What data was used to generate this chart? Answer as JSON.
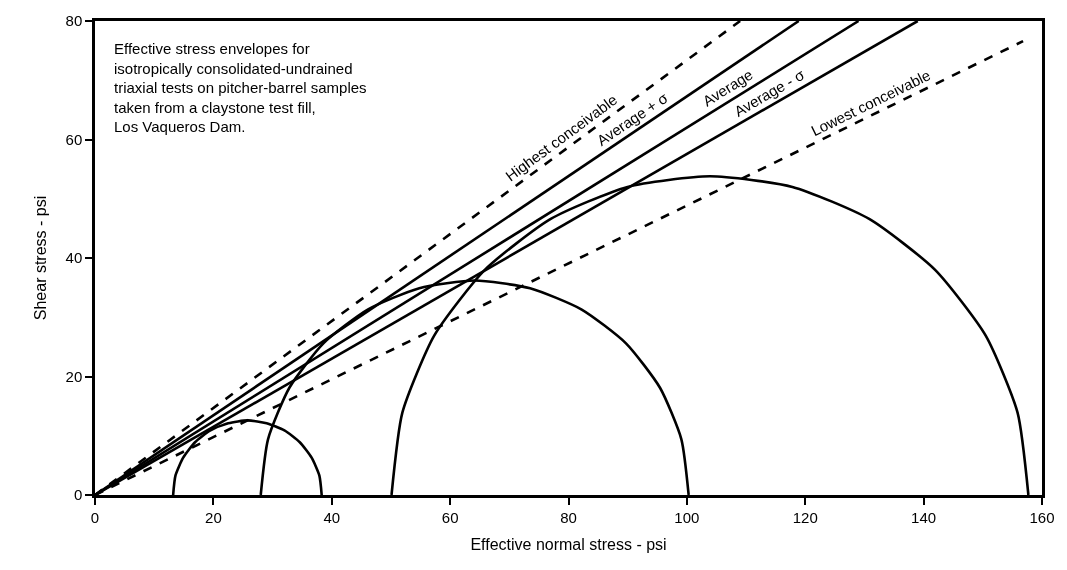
{
  "chart_data": {
    "type": "line",
    "xlabel": "Effective normal stress - psi",
    "ylabel": "Shear stress - psi",
    "xlim": [
      0,
      160
    ],
    "ylim": [
      0,
      80
    ],
    "xticks": [
      0,
      20,
      40,
      60,
      80,
      100,
      120,
      140,
      160
    ],
    "yticks": [
      0,
      20,
      40,
      60,
      80
    ],
    "grid": false,
    "marker": "none",
    "series": [
      {
        "color": "#000000",
        "line_style": "dashed",
        "x": [
          0,
          109
        ],
        "values": [
          0,
          80
        ]
      },
      {
        "color": "#000000",
        "line_style": "solid",
        "x": [
          0,
          118.9
        ],
        "values": [
          0,
          80
        ]
      },
      {
        "color": "#000000",
        "line_style": "solid",
        "x": [
          0,
          129
        ],
        "values": [
          0,
          80
        ]
      },
      {
        "color": "#000000",
        "line_style": "solid",
        "x": [
          0,
          139
        ],
        "values": [
          0,
          80
        ]
      },
      {
        "color": "#000000",
        "line_style": "dashed",
        "x": [
          0,
          156.8
        ],
        "values": [
          0,
          76.6
        ]
      },
      {
        "color": "#000000",
        "line_style": "solid",
        "x": [
          13.2,
          13.6,
          14.9,
          16.9,
          19.5,
          22.5,
          25.8,
          29,
          32,
          34.6,
          36.6,
          37.9,
          38.3
        ],
        "values": [
          0,
          3.3,
          6.3,
          8.9,
          10.9,
          12.1,
          12.6,
          12.1,
          10.9,
          8.9,
          6.3,
          3.3,
          0
        ]
      },
      {
        "color": "#000000",
        "line_style": "solid",
        "x": [
          28.0,
          29.23,
          32.84,
          38.59,
          46.07,
          54.79,
          64.15,
          73.51,
          82.23,
          89.71,
          95.46,
          99.07,
          100.3
        ],
        "values": [
          0,
          9.4,
          18.1,
          25.6,
          31.3,
          34.9,
          36.2,
          34.9,
          31.3,
          25.6,
          18.1,
          9.4,
          0
        ]
      },
      {
        "color": "#000000",
        "line_style": "solid",
        "x": [
          50.1,
          51.93,
          57.31,
          65.86,
          77.0,
          89.97,
          103.9,
          117.83,
          130.8,
          141.94,
          150.49,
          155.87,
          157.7
        ],
        "values": [
          0,
          13.9,
          26.9,
          38,
          46.6,
          52,
          53.8,
          52,
          46.6,
          38,
          26.9,
          13.9,
          0
        ]
      }
    ],
    "annotations": [
      "Effective stress envelopes for\nisotropically consolidated-undrained\ntriaxial tests on pitcher-barrel samples\ntaken from a claystone test fill,\nLos Vaqueros Dam.",
      {
        "text": "Highest conceivable",
        "x": 80,
        "y": 58.7
      },
      {
        "text": "Average + σ",
        "x": 92,
        "y": 61.9
      },
      {
        "text": "Average",
        "x": 108,
        "y": 67
      },
      {
        "text": "Average - σ",
        "x": 115,
        "y": 66.2
      },
      {
        "text": "Lowest conceivable",
        "x": 132,
        "y": 64.5
      }
    ]
  }
}
